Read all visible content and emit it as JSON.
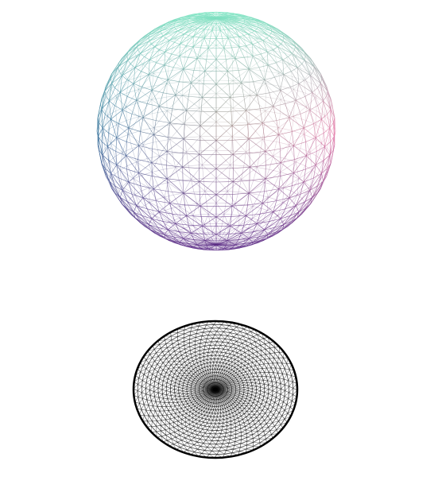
{
  "scene": {
    "background": "#ffffff",
    "objects": [
      {
        "name": "colored-wireframe-sphere",
        "kind": "sphere-wireframe",
        "latitude_bands": 26,
        "longitude_segments": 44,
        "triangulated": true,
        "coloring": "position-gradient",
        "colors": {
          "top": "#7fe6c4",
          "left": "#2f6f99",
          "right": "#e878a8",
          "bottom": "#5b2a86",
          "middle": "#b7b24a"
        }
      },
      {
        "name": "black-wireframe-disk",
        "kind": "disk-wireframe",
        "rings": 20,
        "segments": 64,
        "triangulated": true,
        "color": "#000000"
      }
    ]
  }
}
